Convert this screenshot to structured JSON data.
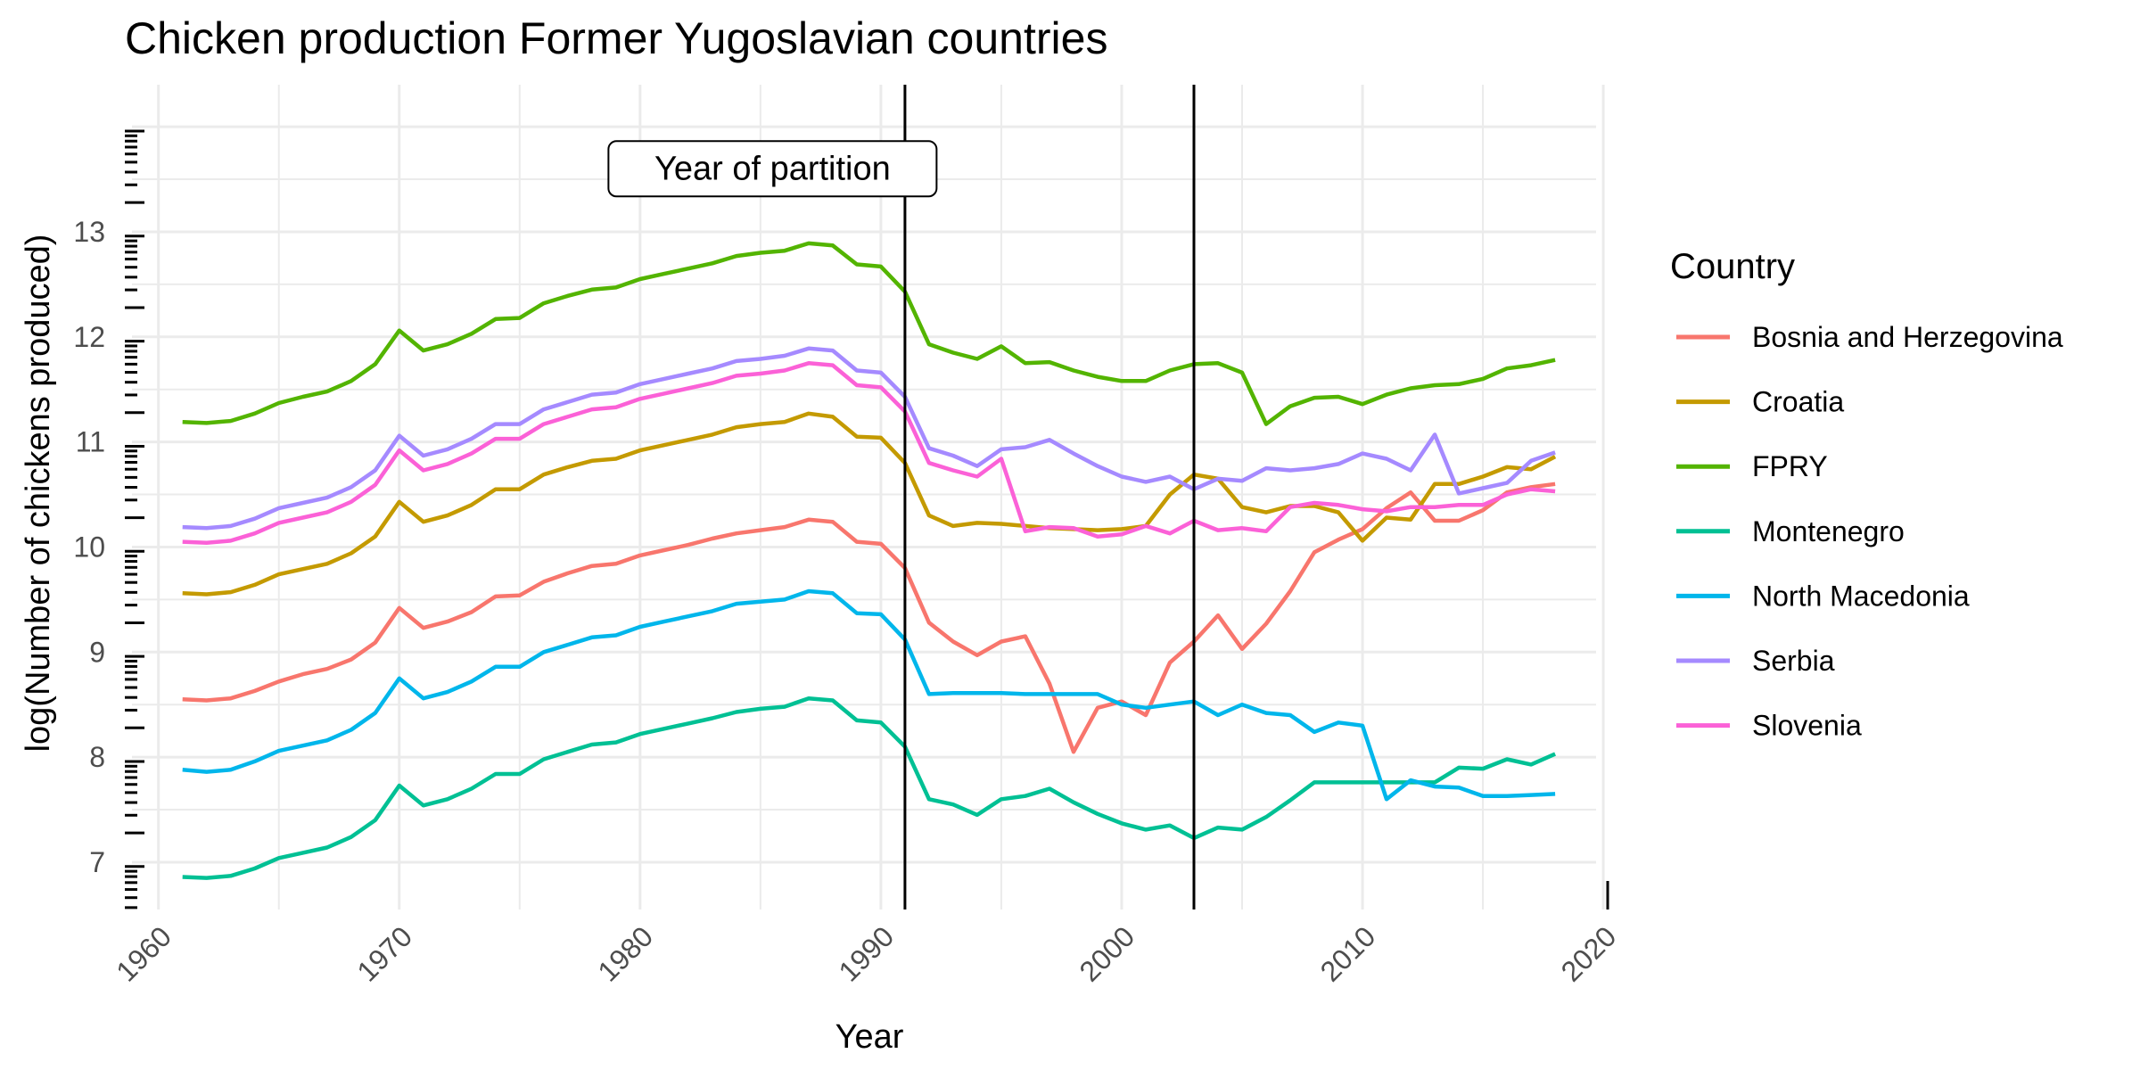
{
  "chart_data": {
    "type": "line",
    "title": "Chicken production Former Yugoslavian countries",
    "xlabel": "Year",
    "ylabel": "log(Number of chickens produced)",
    "xlim": [
      1958.9,
      2019.7
    ],
    "ylim": [
      6.55,
      14.4
    ],
    "x_ticks": [
      1960,
      1970,
      1980,
      1990,
      2000,
      2010,
      2020
    ],
    "y_ticks": [
      7,
      8,
      9,
      10,
      11,
      12,
      13
    ],
    "grid": true,
    "legend_title": "Country",
    "legend_position": "right",
    "annotation": {
      "label": "Year of partition",
      "x": 1985.5,
      "y": 13.6
    },
    "vlines": [
      1991,
      2003
    ],
    "x": [
      1961,
      1962,
      1963,
      1964,
      1965,
      1966,
      1967,
      1968,
      1969,
      1970,
      1971,
      1972,
      1973,
      1974,
      1975,
      1976,
      1977,
      1978,
      1979,
      1980,
      1981,
      1982,
      1983,
      1984,
      1985,
      1986,
      1987,
      1988,
      1989,
      1990,
      1991,
      1992,
      1993,
      1994,
      1995,
      1996,
      1997,
      1998,
      1999,
      2000,
      2001,
      2002,
      2003,
      2004,
      2005,
      2006,
      2007,
      2008,
      2009,
      2010,
      2011,
      2012,
      2013,
      2014,
      2015,
      2016,
      2017,
      2018
    ],
    "series": [
      {
        "name": "Bosnia and Herzegovina",
        "color": "#F8766D",
        "values": [
          8.55,
          8.54,
          8.56,
          8.63,
          8.72,
          8.79,
          8.84,
          8.93,
          9.09,
          9.42,
          9.23,
          9.29,
          9.38,
          9.53,
          9.54,
          9.67,
          9.75,
          9.82,
          9.84,
          9.92,
          9.97,
          10.02,
          10.08,
          10.13,
          10.16,
          10.19,
          10.26,
          10.24,
          10.05,
          10.03,
          9.8,
          9.28,
          9.1,
          8.97,
          9.1,
          9.15,
          8.7,
          8.05,
          8.47,
          8.53,
          8.4,
          8.9,
          9.1,
          9.35,
          9.03,
          9.27,
          9.58,
          9.95,
          10.07,
          10.17,
          10.37,
          10.52,
          10.25,
          10.25,
          10.35,
          10.52,
          10.57,
          10.6
        ]
      },
      {
        "name": "Croatia",
        "color": "#C49A00",
        "values": [
          9.56,
          9.55,
          9.57,
          9.64,
          9.74,
          9.79,
          9.84,
          9.94,
          10.1,
          10.43,
          10.24,
          10.3,
          10.4,
          10.55,
          10.55,
          10.69,
          10.76,
          10.82,
          10.84,
          10.92,
          10.97,
          11.02,
          11.07,
          11.14,
          11.17,
          11.19,
          11.27,
          11.24,
          11.05,
          11.04,
          10.8,
          10.3,
          10.2,
          10.23,
          10.22,
          10.2,
          10.18,
          10.17,
          10.16,
          10.17,
          10.2,
          10.5,
          10.69,
          10.65,
          10.38,
          10.33,
          10.39,
          10.39,
          10.33,
          10.06,
          10.28,
          10.26,
          10.6,
          10.6,
          10.67,
          10.76,
          10.74,
          10.86
        ]
      },
      {
        "name": "FPRY",
        "color": "#53B400",
        "values": [
          11.19,
          11.18,
          11.2,
          11.27,
          11.37,
          11.43,
          11.48,
          11.58,
          11.74,
          12.06,
          11.87,
          11.93,
          12.03,
          12.17,
          12.18,
          12.32,
          12.39,
          12.45,
          12.47,
          12.55,
          12.6,
          12.65,
          12.7,
          12.77,
          12.8,
          12.82,
          12.89,
          12.87,
          12.69,
          12.67,
          12.43,
          11.93,
          11.85,
          11.79,
          11.91,
          11.75,
          11.76,
          11.68,
          11.62,
          11.58,
          11.58,
          11.68,
          11.74,
          11.75,
          11.66,
          11.17,
          11.34,
          11.42,
          11.43,
          11.36,
          11.45,
          11.51,
          11.54,
          11.55,
          11.6,
          11.7,
          11.73,
          11.78
        ]
      },
      {
        "name": "Montenegro",
        "color": "#00C094",
        "values": [
          6.86,
          6.85,
          6.87,
          6.94,
          7.04,
          7.09,
          7.14,
          7.24,
          7.4,
          7.73,
          7.54,
          7.6,
          7.7,
          7.84,
          7.84,
          7.98,
          8.05,
          8.12,
          8.14,
          8.22,
          8.27,
          8.32,
          8.37,
          8.43,
          8.46,
          8.48,
          8.56,
          8.54,
          8.35,
          8.33,
          8.1,
          7.6,
          7.55,
          7.45,
          7.6,
          7.63,
          7.7,
          7.57,
          7.46,
          7.37,
          7.31,
          7.35,
          7.23,
          7.33,
          7.31,
          7.43,
          7.59,
          7.76,
          7.76,
          7.76,
          7.76,
          7.76,
          7.76,
          7.9,
          7.89,
          7.98,
          7.93,
          8.03
        ]
      },
      {
        "name": "North Macedonia",
        "color": "#00B6EB",
        "values": [
          7.88,
          7.86,
          7.88,
          7.96,
          8.06,
          8.11,
          8.16,
          8.26,
          8.42,
          8.75,
          8.56,
          8.62,
          8.72,
          8.86,
          8.86,
          9.0,
          9.07,
          9.14,
          9.16,
          9.24,
          9.29,
          9.34,
          9.39,
          9.46,
          9.48,
          9.5,
          9.58,
          9.56,
          9.37,
          9.36,
          9.12,
          8.6,
          8.61,
          8.61,
          8.61,
          8.6,
          8.6,
          8.6,
          8.6,
          8.5,
          8.47,
          8.5,
          8.53,
          8.4,
          8.5,
          8.42,
          8.4,
          8.24,
          8.33,
          8.3,
          7.6,
          7.78,
          7.72,
          7.71,
          7.63,
          7.63,
          7.64,
          7.65
        ]
      },
      {
        "name": "Serbia",
        "color": "#A58AFF",
        "values": [
          10.19,
          10.18,
          10.2,
          10.27,
          10.37,
          10.42,
          10.47,
          10.57,
          10.73,
          11.06,
          10.87,
          10.93,
          11.03,
          11.17,
          11.17,
          11.31,
          11.38,
          11.45,
          11.47,
          11.55,
          11.6,
          11.65,
          11.7,
          11.77,
          11.79,
          11.82,
          11.89,
          11.87,
          11.68,
          11.66,
          11.43,
          10.94,
          10.87,
          10.77,
          10.93,
          10.95,
          11.02,
          10.89,
          10.77,
          10.67,
          10.62,
          10.67,
          10.55,
          10.65,
          10.63,
          10.75,
          10.73,
          10.75,
          10.79,
          10.89,
          10.84,
          10.73,
          11.07,
          10.51,
          10.56,
          10.61,
          10.82,
          10.9
        ]
      },
      {
        "name": "Slovenia",
        "color": "#FB61D7",
        "values": [
          10.05,
          10.04,
          10.06,
          10.13,
          10.23,
          10.28,
          10.33,
          10.43,
          10.59,
          10.92,
          10.73,
          10.79,
          10.89,
          11.03,
          11.03,
          11.17,
          11.24,
          11.31,
          11.33,
          11.41,
          11.46,
          11.51,
          11.56,
          11.63,
          11.65,
          11.68,
          11.75,
          11.73,
          11.54,
          11.52,
          11.29,
          10.8,
          10.73,
          10.67,
          10.84,
          10.15,
          10.19,
          10.18,
          10.1,
          10.12,
          10.2,
          10.13,
          10.25,
          10.16,
          10.18,
          10.15,
          10.38,
          10.42,
          10.4,
          10.36,
          10.34,
          10.38,
          10.38,
          10.4,
          10.4,
          10.5,
          10.55,
          10.53
        ]
      }
    ]
  }
}
